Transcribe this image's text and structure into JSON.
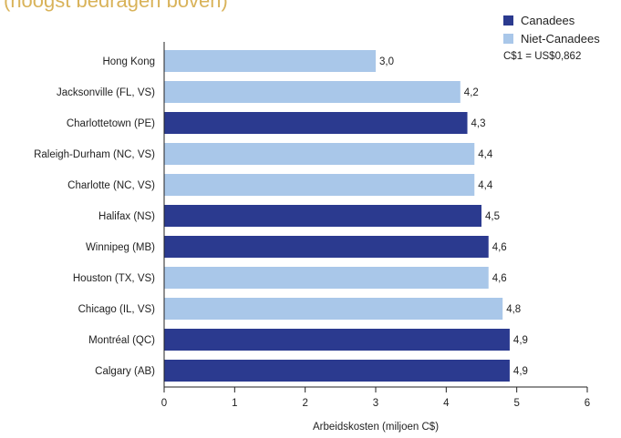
{
  "colors": {
    "canadian": "#2b3a8f",
    "non_canadian": "#a9c7e9",
    "axis": "#222222",
    "title": "#d9b35a"
  },
  "header": {
    "title_fragment": "(hoogst bedragen boven)"
  },
  "legend": {
    "items": [
      {
        "label": "Canadees",
        "color_key": "canadian"
      },
      {
        "label": "Niet-Canadees",
        "color_key": "non_canadian"
      }
    ],
    "note": "C$1 = US$0,862"
  },
  "chart_data": {
    "type": "bar",
    "orientation": "horizontal",
    "categories": [
      "Hong Kong",
      "Jacksonville (FL, VS)",
      "Charlottetown (PE)",
      "Raleigh-Durham (NC, VS)",
      "Charlotte (NC, VS)",
      "Halifax (NS)",
      "Winnipeg (MB)",
      "Houston (TX, VS)",
      "Chicago (IL, VS)",
      "Montréal (QC)",
      "Calgary (AB)"
    ],
    "values": [
      3.0,
      4.2,
      4.3,
      4.4,
      4.4,
      4.5,
      4.6,
      4.6,
      4.8,
      4.9,
      4.9
    ],
    "value_labels": [
      "3,0",
      "4,2",
      "4,3",
      "4,4",
      "4,4",
      "4,5",
      "4,6",
      "4,6",
      "4,8",
      "4,9",
      "4,9"
    ],
    "groups": [
      "Niet-Canadees",
      "Niet-Canadees",
      "Canadees",
      "Niet-Canadees",
      "Niet-Canadees",
      "Canadees",
      "Canadees",
      "Niet-Canadees",
      "Niet-Canadees",
      "Canadees",
      "Canadees"
    ],
    "xlabel": "Arbeidskosten (miljoen C$)",
    "ylabel": "",
    "xlim": [
      0,
      6
    ],
    "x_ticks": [
      0,
      1,
      2,
      3,
      4,
      5,
      6
    ],
    "grid": false,
    "legend_position": "top-right"
  }
}
